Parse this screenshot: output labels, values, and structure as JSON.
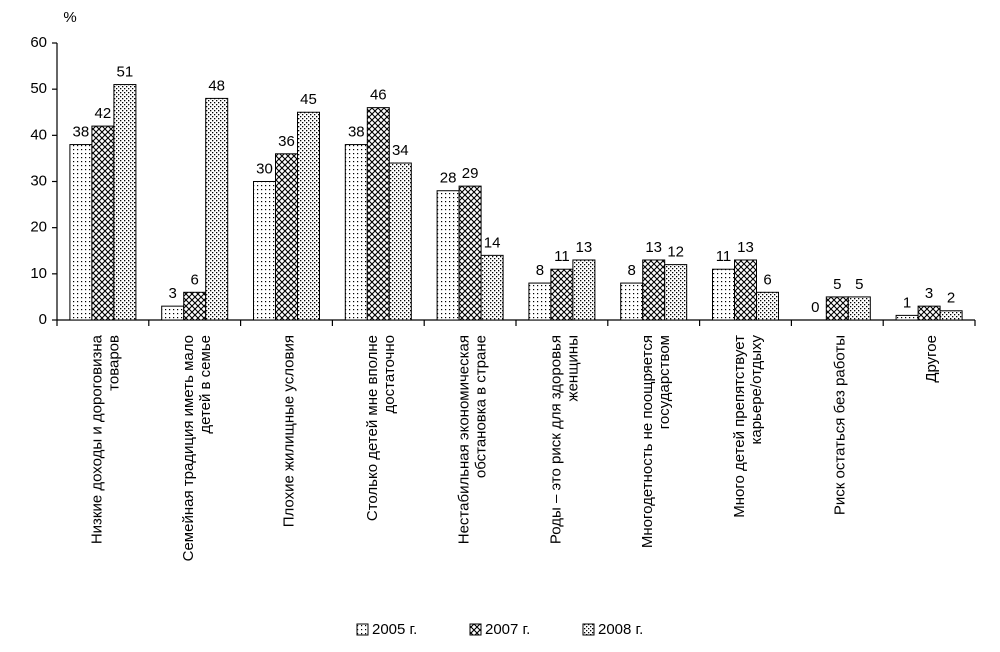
{
  "chart_data": {
    "type": "bar",
    "y_label": "%",
    "categories": [
      [
        "Низкие доходы и дороговизна",
        "товаров"
      ],
      [
        "Семейная традиция иметь мало",
        "детей в семье"
      ],
      [
        "Плохие жилищные условия"
      ],
      [
        "Столько детей мне вполне",
        "достаточно"
      ],
      [
        "Нестабильная экономическая",
        "обстановка в стране"
      ],
      [
        "Роды – это риск для здоровья",
        "женщины"
      ],
      [
        "Многодетность не поощряется",
        "государством"
      ],
      [
        "Много детей  препятствует",
        "карьере/отдыху"
      ],
      [
        "Риск остаться без работы"
      ],
      [
        "Другое"
      ]
    ],
    "series": [
      {
        "name": "2005 г.",
        "color": "#000000",
        "pattern": "dots",
        "values": [
          38,
          3,
          30,
          38,
          28,
          8,
          8,
          11,
          0,
          1
        ]
      },
      {
        "name": "2007 г.",
        "color": "#000000",
        "pattern": "crosshatch",
        "values": [
          42,
          6,
          36,
          46,
          29,
          11,
          13,
          13,
          5,
          3
        ]
      },
      {
        "name": "2008 г.",
        "color": "#000000",
        "pattern": "checker",
        "values": [
          51,
          48,
          45,
          34,
          14,
          13,
          12,
          6,
          5,
          2
        ]
      }
    ],
    "ylim": [
      0,
      60
    ],
    "yticks": [
      0,
      10,
      20,
      30,
      40,
      50,
      60
    ],
    "grid": false,
    "legend": "bottom"
  }
}
